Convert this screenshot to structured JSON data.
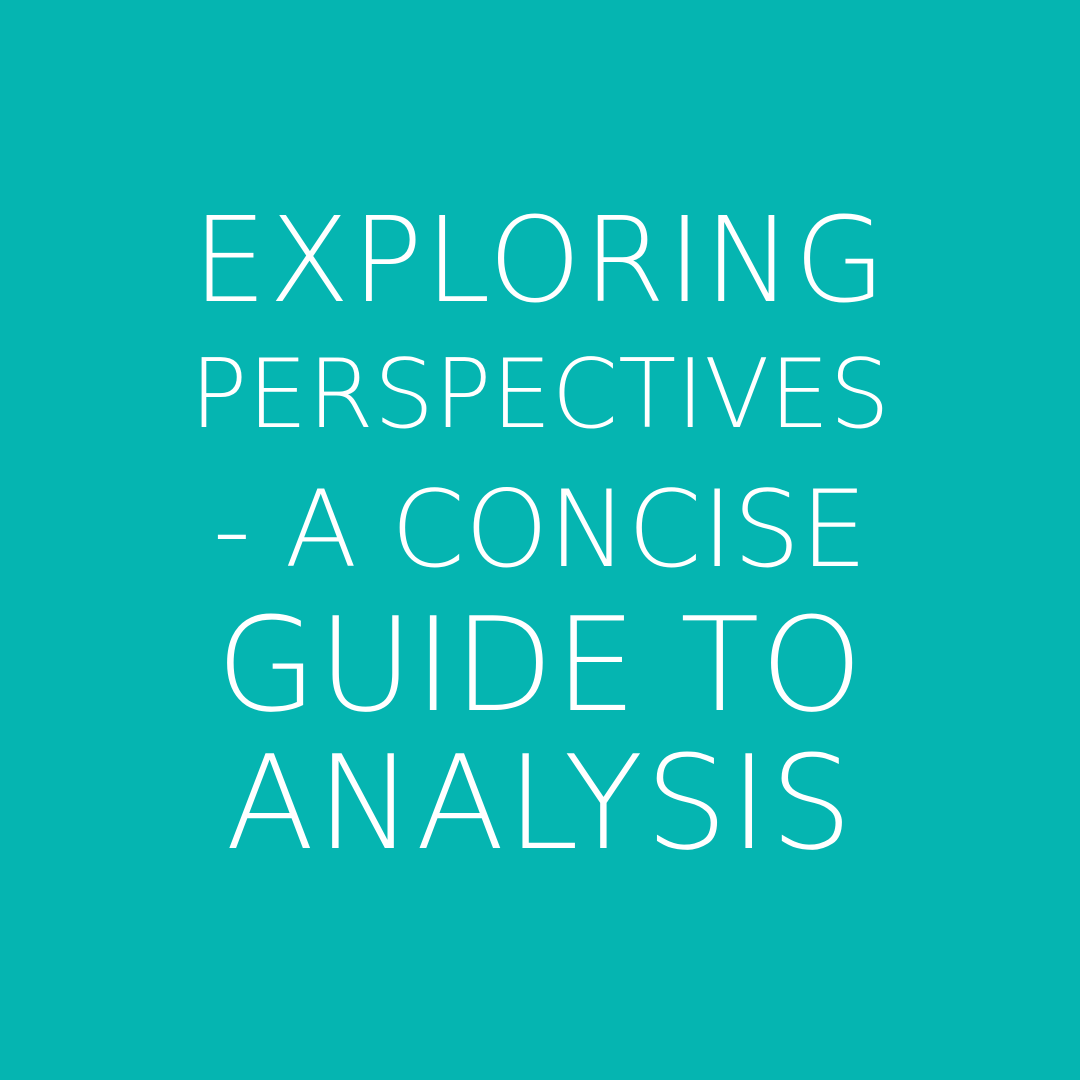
{
  "background_color": "#05B5B1",
  "text_color": "#FFFFFF",
  "title_lines": [
    "EXPLORING",
    "PERSPECTIVES",
    "- A CONCISE",
    "GUIDE TO",
    "ANALYSIS"
  ]
}
